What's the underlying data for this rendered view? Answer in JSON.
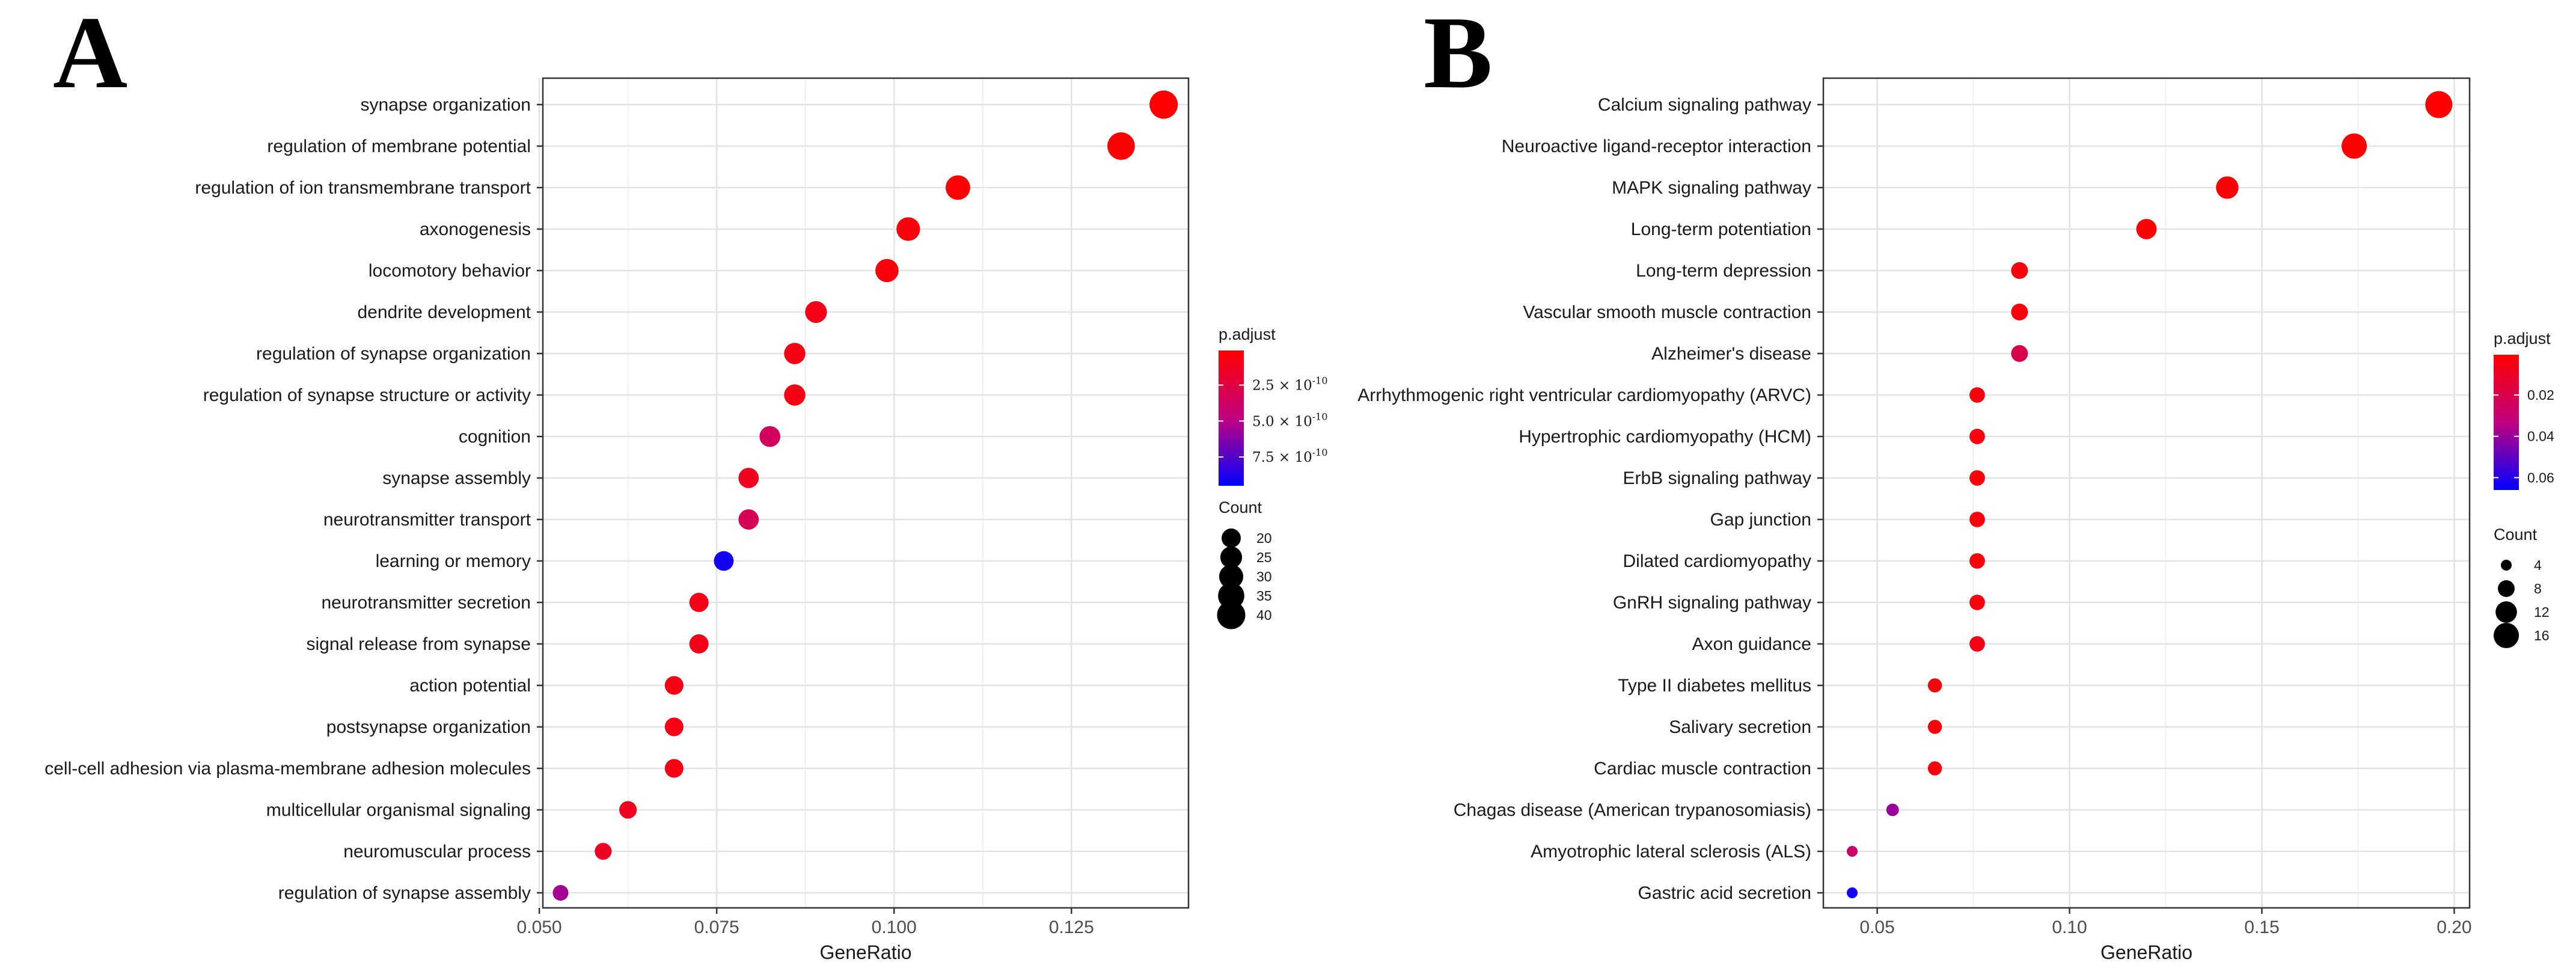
{
  "chart_data": [
    {
      "panel_label": "A",
      "type": "scatter",
      "title": "",
      "xlabel": "GeneRatio",
      "ylabel": "",
      "xlim": [
        0.0505,
        0.1415
      ],
      "xticks": [
        "0.050",
        "0.075",
        "0.100",
        "0.125"
      ],
      "xtick_values": [
        0.05,
        0.075,
        0.1,
        0.125
      ],
      "grid": true,
      "terms": [
        {
          "label": "synapse organization",
          "gene_ratio": 0.138,
          "count": 40,
          "p_adjust": 1e-12
        },
        {
          "label": "regulation of membrane potential",
          "gene_ratio": 0.132,
          "count": 38,
          "p_adjust": 1e-12
        },
        {
          "label": "regulation of ion transmembrane transport",
          "gene_ratio": 0.109,
          "count": 31,
          "p_adjust": 2e-11
        },
        {
          "label": "axonogenesis",
          "gene_ratio": 0.102,
          "count": 29,
          "p_adjust": 5e-11
        },
        {
          "label": "locomotory behavior",
          "gene_ratio": 0.099,
          "count": 28,
          "p_adjust": 5e-11
        },
        {
          "label": "dendrite development",
          "gene_ratio": 0.089,
          "count": 25,
          "p_adjust": 1e-10
        },
        {
          "label": "regulation of synapse organization",
          "gene_ratio": 0.086,
          "count": 24,
          "p_adjust": 8e-11
        },
        {
          "label": "regulation of synapse structure or activity",
          "gene_ratio": 0.086,
          "count": 24,
          "p_adjust": 8e-11
        },
        {
          "label": "cognition",
          "gene_ratio": 0.0825,
          "count": 23,
          "p_adjust": 3.5e-10
        },
        {
          "label": "synapse assembly",
          "gene_ratio": 0.0795,
          "count": 22,
          "p_adjust": 1.2e-10
        },
        {
          "label": "neurotransmitter transport",
          "gene_ratio": 0.0795,
          "count": 22,
          "p_adjust": 3.2e-10
        },
        {
          "label": "learning or memory",
          "gene_ratio": 0.076,
          "count": 21,
          "p_adjust": 9e-10
        },
        {
          "label": "neurotransmitter secretion",
          "gene_ratio": 0.0725,
          "count": 20,
          "p_adjust": 1e-10
        },
        {
          "label": "signal release from synapse",
          "gene_ratio": 0.0725,
          "count": 20,
          "p_adjust": 1e-10
        },
        {
          "label": "action potential",
          "gene_ratio": 0.069,
          "count": 19,
          "p_adjust": 8e-11
        },
        {
          "label": "postsynapse organization",
          "gene_ratio": 0.069,
          "count": 19,
          "p_adjust": 8e-11
        },
        {
          "label": "cell-cell adhesion via plasma-membrane adhesion molecules",
          "gene_ratio": 0.069,
          "count": 19,
          "p_adjust": 8e-11
        },
        {
          "label": "multicellular organismal signaling",
          "gene_ratio": 0.0625,
          "count": 17,
          "p_adjust": 1.2e-10
        },
        {
          "label": "neuromuscular process",
          "gene_ratio": 0.059,
          "count": 16,
          "p_adjust": 1.4e-10
        },
        {
          "label": "regulation of synapse assembly",
          "gene_ratio": 0.053,
          "count": 14,
          "p_adjust": 5.5e-10
        }
      ],
      "legend": {
        "color_title": "p.adjust",
        "color_range": [
          1e-11,
          9.5e-10
        ],
        "color_breaks": [
          2.5e-10,
          5e-10,
          7.5e-10
        ],
        "color_break_labels": [
          {
            "mantissa": "2.5 × 10",
            "exponent": "-10"
          },
          {
            "mantissa": "5.0 × 10",
            "exponent": "-10"
          },
          {
            "mantissa": "7.5 × 10",
            "exponent": "-10"
          }
        ],
        "size_title": "Count",
        "size_breaks": [
          "20",
          "25",
          "30",
          "35",
          "40"
        ],
        "size_range": [
          14,
          40
        ]
      }
    },
    {
      "panel_label": "B",
      "type": "scatter",
      "title": "",
      "xlabel": "GeneRatio",
      "ylabel": "",
      "xlim": [
        0.036,
        0.204
      ],
      "xticks": [
        "0.05",
        "0.10",
        "0.15",
        "0.20"
      ],
      "xtick_values": [
        0.05,
        0.1,
        0.15,
        0.2
      ],
      "grid": true,
      "terms": [
        {
          "label": "Calcium signaling pathway",
          "gene_ratio": 0.196,
          "count": 18,
          "p_adjust": 0.001
        },
        {
          "label": "Neuroactive ligand-receptor interaction",
          "gene_ratio": 0.174,
          "count": 16,
          "p_adjust": 0.001
        },
        {
          "label": "MAPK signaling pathway",
          "gene_ratio": 0.141,
          "count": 13,
          "p_adjust": 0.002
        },
        {
          "label": "Long-term potentiation",
          "gene_ratio": 0.12,
          "count": 11,
          "p_adjust": 0.001
        },
        {
          "label": "Long-term depression",
          "gene_ratio": 0.087,
          "count": 8,
          "p_adjust": 0.003
        },
        {
          "label": "Vascular smooth muscle contraction",
          "gene_ratio": 0.087,
          "count": 8,
          "p_adjust": 0.003
        },
        {
          "label": "Alzheimer's disease",
          "gene_ratio": 0.087,
          "count": 8,
          "p_adjust": 0.02
        },
        {
          "label": "Arrhythmogenic right ventricular cardiomyopathy (ARVC)",
          "gene_ratio": 0.076,
          "count": 7,
          "p_adjust": 0.003
        },
        {
          "label": "Hypertrophic cardiomyopathy (HCM)",
          "gene_ratio": 0.076,
          "count": 7,
          "p_adjust": 0.003
        },
        {
          "label": "ErbB signaling pathway",
          "gene_ratio": 0.076,
          "count": 7,
          "p_adjust": 0.003
        },
        {
          "label": "Gap junction",
          "gene_ratio": 0.076,
          "count": 7,
          "p_adjust": 0.003
        },
        {
          "label": "Dilated cardiomyopathy",
          "gene_ratio": 0.076,
          "count": 7,
          "p_adjust": 0.003
        },
        {
          "label": "GnRH signaling pathway",
          "gene_ratio": 0.076,
          "count": 7,
          "p_adjust": 0.003
        },
        {
          "label": "Axon guidance",
          "gene_ratio": 0.076,
          "count": 7,
          "p_adjust": 0.006
        },
        {
          "label": "Type II diabetes mellitus",
          "gene_ratio": 0.065,
          "count": 6,
          "p_adjust": 0.003
        },
        {
          "label": "Salivary secretion",
          "gene_ratio": 0.065,
          "count": 6,
          "p_adjust": 0.003
        },
        {
          "label": "Cardiac muscle contraction",
          "gene_ratio": 0.065,
          "count": 6,
          "p_adjust": 0.003
        },
        {
          "label": "Chagas disease (American trypanosomiasis)",
          "gene_ratio": 0.054,
          "count": 5,
          "p_adjust": 0.04
        },
        {
          "label": "Amyotrophic lateral sclerosis (ALS)",
          "gene_ratio": 0.0435,
          "count": 4,
          "p_adjust": 0.028
        },
        {
          "label": "Gastric acid secretion",
          "gene_ratio": 0.0435,
          "count": 4,
          "p_adjust": 0.063
        }
      ],
      "legend": {
        "color_title": "p.adjust",
        "color_range": [
          0.0005,
          0.066
        ],
        "color_breaks": [
          0.02,
          0.04,
          0.06
        ],
        "color_break_labels": [
          {
            "mantissa": "0.02",
            "exponent": ""
          },
          {
            "mantissa": "0.04",
            "exponent": ""
          },
          {
            "mantissa": "0.06",
            "exponent": ""
          }
        ],
        "size_title": "Count",
        "size_breaks": [
          "4",
          "8",
          "12",
          "16"
        ],
        "size_range": [
          4,
          18
        ]
      }
    }
  ]
}
